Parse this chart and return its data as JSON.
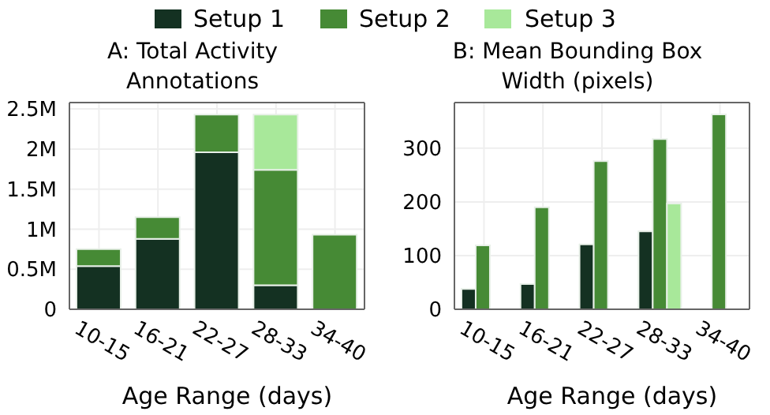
{
  "chart_data": [
    {
      "type": "bar",
      "title": "A: Total Activity Annotations",
      "xlabel": "Age Range (days)",
      "categories": [
        "10-15",
        "16-21",
        "22-27",
        "28-33",
        "34-40"
      ],
      "stacked": true,
      "legend": "top",
      "grid": true,
      "series": [
        {
          "name": "Setup 1",
          "color": "#143122",
          "values": [
            540000,
            880000,
            1960000,
            300000,
            null
          ]
        },
        {
          "name": "Setup 2",
          "color": "#468a35",
          "values": [
            210000,
            270000,
            470000,
            1440000,
            930000
          ]
        },
        {
          "name": "Setup 3",
          "color": "#a8e89a",
          "values": [
            null,
            null,
            null,
            690000,
            null
          ]
        }
      ],
      "ylim": [
        0,
        2580000
      ],
      "yticks": [
        0,
        {
          "value": 500000,
          "label": "0.5M"
        },
        {
          "value": 1000000,
          "label": "1M"
        },
        {
          "value": 1500000,
          "label": "1.5M"
        },
        {
          "value": 2000000,
          "label": "2M"
        },
        {
          "value": 2500000,
          "label": "2.5M"
        }
      ]
    },
    {
      "type": "bar",
      "title": "B: Mean Bounding Box Width (pixels)",
      "xlabel": "Age Range (days)",
      "categories": [
        "10-15",
        "16-21",
        "22-27",
        "28-33",
        "34-40"
      ],
      "grid": true,
      "series": [
        {
          "color": "#143122",
          "values": [
            38,
            47,
            121,
            145,
            null
          ]
        },
        {
          "color": "#468a35",
          "values": [
            119,
            190,
            276,
            317,
            363
          ]
        },
        {
          "color": "#a8e89a",
          "values": [
            null,
            null,
            null,
            197,
            null
          ]
        }
      ],
      "ylim": [
        0,
        385
      ],
      "yticks": [
        0,
        100,
        200,
        300
      ]
    }
  ]
}
